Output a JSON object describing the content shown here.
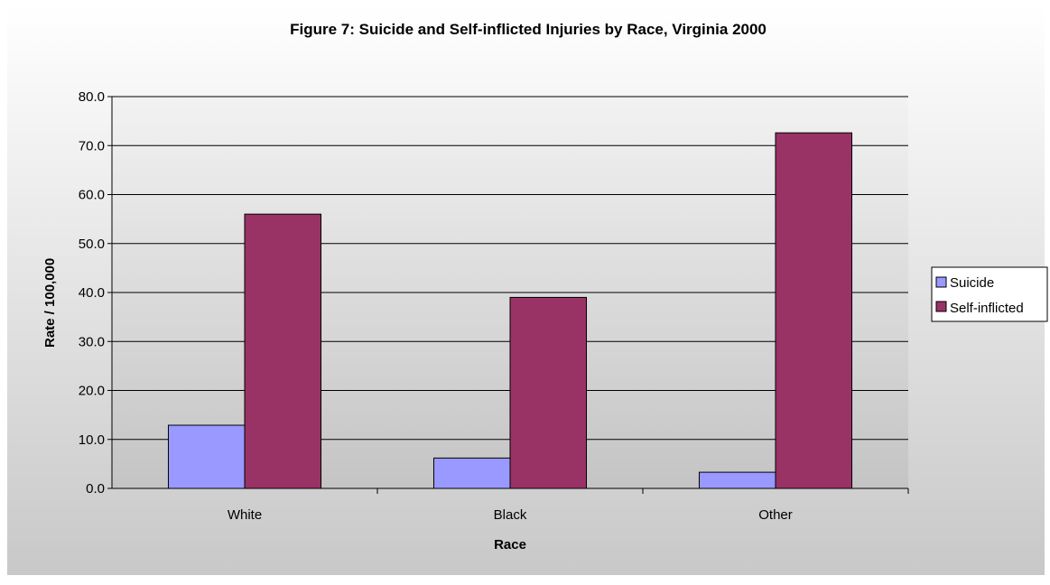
{
  "chart_data": {
    "type": "bar",
    "title": "Figure 7: Suicide and Self-inflicted Injuries by Race, Virginia 2000",
    "xlabel": "Race",
    "ylabel": "Rate / 100,000",
    "categories": [
      "White",
      "Black",
      "Other"
    ],
    "series": [
      {
        "name": "Suicide",
        "values": [
          12.9,
          6.2,
          3.3
        ],
        "color": "#9999ff"
      },
      {
        "name": "Self-inflicted",
        "values": [
          56.0,
          39.0,
          72.6
        ],
        "color": "#993366"
      }
    ],
    "ylim": [
      0,
      80
    ],
    "yticks": [
      "0.0",
      "10.0",
      "20.0",
      "30.0",
      "40.0",
      "50.0",
      "60.0",
      "70.0",
      "80.0"
    ],
    "grid": true,
    "legend": "right"
  }
}
